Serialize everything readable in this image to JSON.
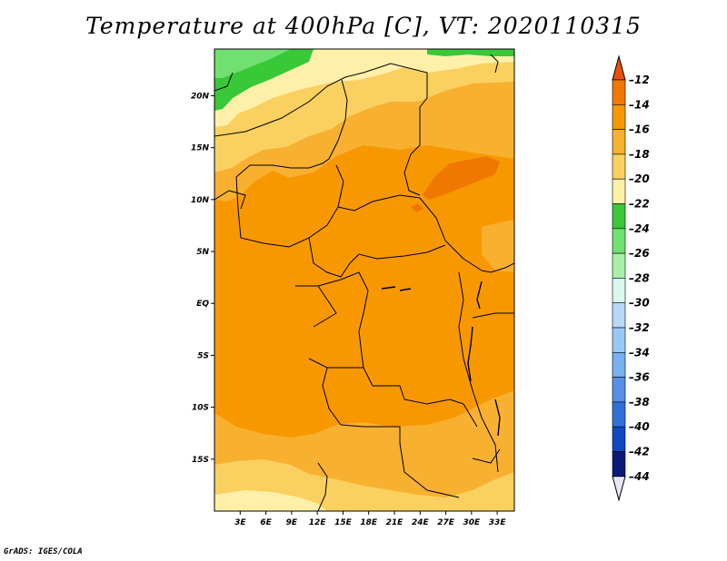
{
  "title": "Temperature at 400hPa [C], VT: 2020110315",
  "credit": "GrADS: IGES/COLA",
  "map": {
    "lat_labels": [
      "20N",
      "15N",
      "10N",
      "5N",
      "EQ",
      "5S",
      "10S",
      "15S"
    ],
    "lat_values": [
      20,
      15,
      10,
      5,
      0,
      -5,
      -10,
      -15
    ],
    "lon_labels": [
      "3E",
      "6E",
      "9E",
      "12E",
      "15E",
      "18E",
      "21E",
      "24E",
      "27E",
      "30E",
      "33E"
    ],
    "lon_values": [
      3,
      6,
      9,
      12,
      15,
      18,
      21,
      24,
      27,
      30,
      33
    ],
    "lat_range": [
      -20,
      24.5
    ],
    "lon_range": [
      0,
      35
    ]
  },
  "colorbar": {
    "labels": [
      "-12",
      "-14",
      "-16",
      "-18",
      "-20",
      "-22",
      "-24",
      "-26",
      "-28",
      "-30",
      "-32",
      "-34",
      "-36",
      "-38",
      "-40",
      "-42",
      "-44"
    ],
    "colors": [
      "#e85000",
      "#f07800",
      "#f89800",
      "#f8b030",
      "#fad060",
      "#fef0a8",
      "#38c838",
      "#70e070",
      "#a8f0a8",
      "#d8f8f0",
      "#b8d8f8",
      "#98c8f8",
      "#78b0f0",
      "#5890e8",
      "#3070d8",
      "#1048c0",
      "#0a1a78",
      "#e8e8f8"
    ]
  }
}
